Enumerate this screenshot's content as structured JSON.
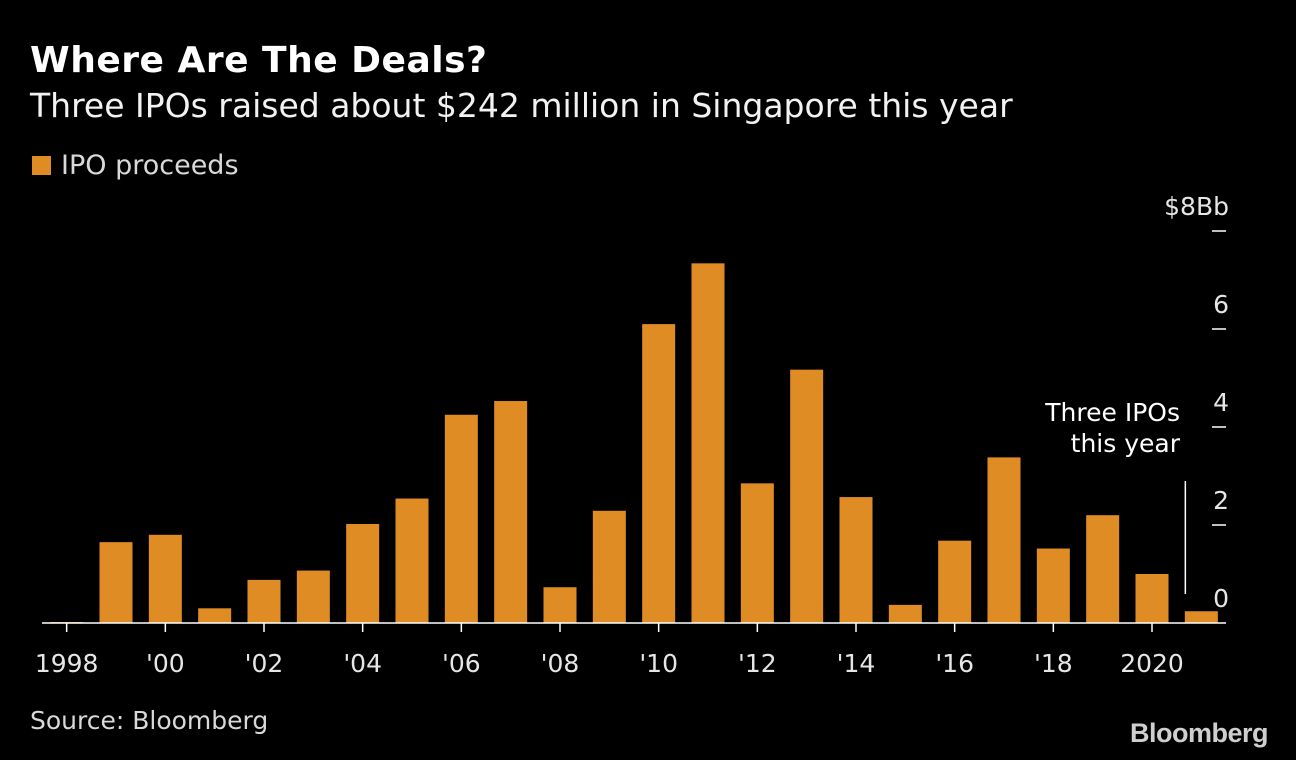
{
  "title": "Where Are The Deals?",
  "subtitle": "Three IPOs raised about $242 million in Singapore this year",
  "source": "Source: Bloomberg",
  "brand": "Bloomberg",
  "colors": {
    "background": "#000000",
    "bar": "#e08c25",
    "text": "#ffffff",
    "muted": "#d9d9d9"
  },
  "chart_data": {
    "type": "bar",
    "categories": [
      "1998",
      "1999",
      "2000",
      "2001",
      "2002",
      "2003",
      "2004",
      "2005",
      "2006",
      "2007",
      "2008",
      "2009",
      "2010",
      "2011",
      "2012",
      "2013",
      "2014",
      "2015",
      "2016",
      "2017",
      "2018",
      "2019",
      "2020",
      "2021"
    ],
    "x_tick_labels": [
      "1998",
      "",
      "'00",
      "",
      "'02",
      "",
      "'04",
      "",
      "'06",
      "",
      "'08",
      "",
      "'10",
      "",
      "'12",
      "",
      "'14",
      "",
      "'16",
      "",
      "'18",
      "",
      "2020",
      ""
    ],
    "series": [
      {
        "name": "IPO proceeds",
        "values": [
          0.02,
          1.65,
          1.8,
          0.3,
          0.88,
          1.07,
          2.02,
          2.54,
          4.25,
          4.53,
          0.73,
          2.29,
          6.1,
          7.34,
          2.85,
          5.17,
          2.57,
          0.37,
          1.68,
          3.38,
          1.52,
          2.2,
          1.0,
          0.24
        ]
      }
    ],
    "ylim": [
      0,
      8
    ],
    "y_ticks": [
      0,
      2,
      4,
      6,
      8
    ],
    "y_tick_labels": [
      "0",
      "2",
      "4",
      "6",
      "$8Bb"
    ],
    "y_axis_side": "right",
    "legend_position": "top-left",
    "grid": false,
    "annotation": {
      "text_lines": [
        "Three IPOs",
        "this year"
      ],
      "target_category": "2021"
    }
  }
}
